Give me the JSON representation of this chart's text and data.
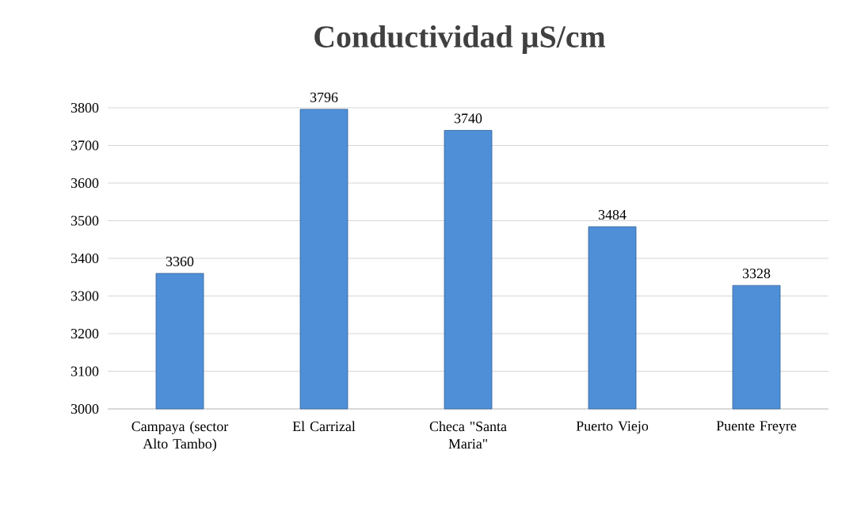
{
  "chart_data": {
    "type": "bar",
    "title": "Conductividad µS/cm",
    "categories": [
      "Campaya (sector Alto Tambo)",
      "El Carrizal",
      "Checa \"Santa Maria\"",
      "Puerto Viejo",
      "Puente Freyre"
    ],
    "values": [
      3360,
      3796,
      3740,
      3484,
      3328
    ],
    "color": "#4f8fd8",
    "ylim": [
      3000,
      3800
    ],
    "yticks": [
      3000,
      3100,
      3200,
      3300,
      3400,
      3500,
      3600,
      3700,
      3800
    ],
    "grid": "y",
    "data_labels": true
  }
}
